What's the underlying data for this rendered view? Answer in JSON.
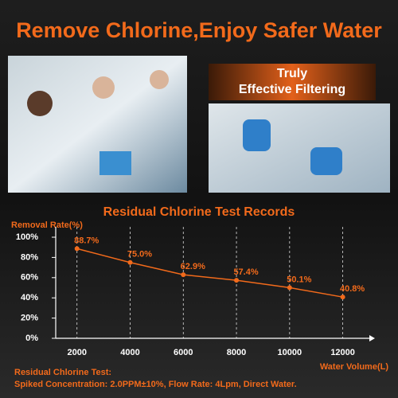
{
  "header": {
    "title": "Remove Chlorine,Enjoy Safer Water"
  },
  "badge": {
    "lines": [
      "Truly",
      "Effective Filtering"
    ]
  },
  "chart_data": {
    "type": "line",
    "title": "Residual Chlorine Test Records",
    "y_label": "Removal Rate(%)",
    "x_label": "Water Volume(L)",
    "x": [
      2000,
      4000,
      6000,
      8000,
      10000,
      12000
    ],
    "values": [
      88.7,
      75.0,
      62.9,
      57.4,
      50.1,
      40.8
    ],
    "value_labels": [
      "88.7%",
      "75.0%",
      "62.9%",
      "57.4%",
      "50.1%",
      "40.8%"
    ],
    "color": "#f26a1b",
    "xlim": [
      1200,
      13000
    ],
    "ylim": [
      0,
      100
    ],
    "xticks": [
      2000,
      4000,
      6000,
      8000,
      10000,
      12000
    ],
    "yticks": [
      {
        "value": 0,
        "label": "0%"
      },
      {
        "value": 20,
        "label": "20%"
      },
      {
        "value": 40,
        "label": "40%"
      },
      {
        "value": 60,
        "label": "60%"
      },
      {
        "value": 80,
        "label": "80%"
      },
      {
        "value": 100,
        "label": "100%"
      }
    ],
    "grid": true,
    "annotations": [
      "Residual Chlorine Test:",
      "Spiked Concentration: 2.0PPM±10%, Flow Rate: 4Lpm, Direct Water."
    ]
  }
}
